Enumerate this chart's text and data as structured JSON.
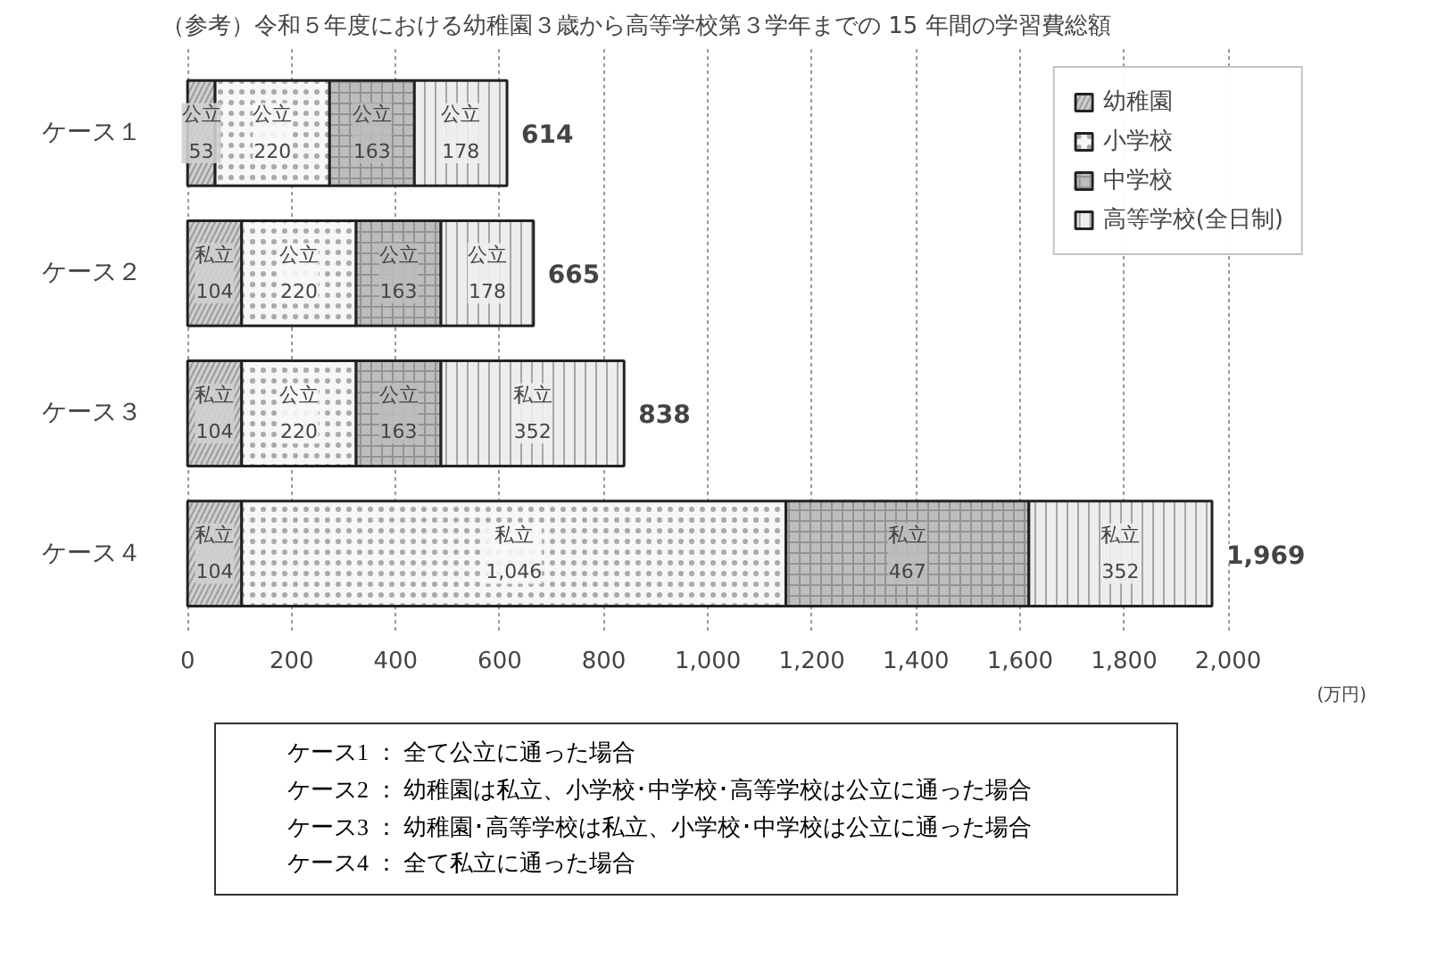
{
  "chart_data": {
    "type": "bar",
    "orientation": "horizontal",
    "stacked": true,
    "title": "（参考）令和５年度における幼稚園３歳から高等学校第３学年までの 15 年間の学習費総額",
    "xlabel": "(万円)",
    "categories": [
      "ケース１",
      "ケース２",
      "ケース３",
      "ケース４"
    ],
    "series": [
      {
        "name": "幼稚園",
        "color": "#cfcfcf",
        "values": [
          53,
          104,
          104,
          104
        ],
        "value_labels": [
          "公立\n53",
          "私立\n104",
          "私立\n104",
          "私立\n104"
        ]
      },
      {
        "name": "小学校",
        "color": "#f7f7f7",
        "values": [
          220,
          220,
          220,
          1046
        ],
        "value_labels": [
          "公立\n220",
          "公立\n220",
          "公立\n220",
          "私立\n1,046"
        ]
      },
      {
        "name": "中学校",
        "color": "#bdbdbd",
        "values": [
          163,
          163,
          163,
          467
        ],
        "value_labels": [
          "公立\n163",
          "公立\n163",
          "公立\n163",
          "私立\n467"
        ]
      },
      {
        "name": "高等学校(全日制)",
        "color": "#ededed",
        "values": [
          178,
          178,
          352,
          352
        ],
        "value_labels": [
          "公立\n178",
          "公立\n178",
          "私立\n352",
          "私立\n352"
        ]
      }
    ],
    "totals": [
      "614",
      "665",
      "838",
      "1,969"
    ],
    "xlim": [
      0,
      2000
    ],
    "xticks": [
      0,
      {
        "value": 200,
        "label": "200"
      },
      {
        "value": 400,
        "label": "400"
      },
      {
        "value": 600,
        "label": "600"
      },
      {
        "value": 800,
        "label": "800"
      },
      {
        "value": 1000,
        "label": "1,000"
      },
      {
        "value": 1200,
        "label": "1,200"
      },
      {
        "value": 1400,
        "label": "1,400"
      },
      {
        "value": 1600,
        "label": "1,600"
      },
      {
        "value": 1800,
        "label": "1,800"
      },
      {
        "value": 2000,
        "label": "2,000"
      }
    ],
    "grid": "x",
    "legend": "top right",
    "annotations": [
      "ケース1 ： 全て公立に通った場合",
      "ケース2 ： 幼稚園は私立、小学校･中学校･高等学校は公立に通った場合",
      "ケース3 ： 幼稚園･高等学校は私立、小学校･中学校は公立に通った場合",
      "ケース4 ： 全て私立に通った場合"
    ]
  }
}
